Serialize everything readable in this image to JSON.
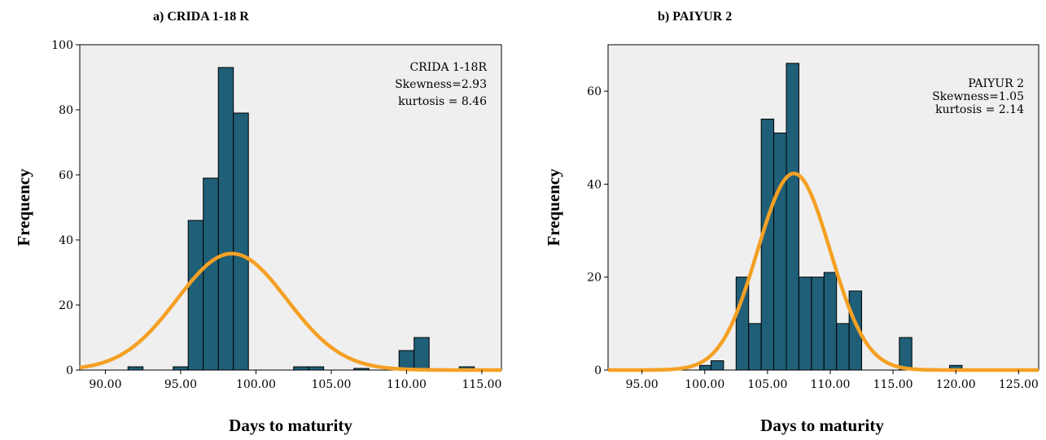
{
  "chart_data": [
    {
      "type": "bar",
      "panel_title": "a) CRIDA 1-18 R",
      "xlabel": "Days to maturity",
      "ylabel": "Frequency",
      "xlim": [
        88.3,
        116.3
      ],
      "ylim": [
        0,
        100
      ],
      "xticks": [
        "90.00",
        "95.00",
        "100.00",
        "105.00",
        "110.00",
        "115.00"
      ],
      "xtick_values": [
        90,
        95,
        100,
        105,
        110,
        115
      ],
      "yticks": [
        "0",
        "20",
        "40",
        "60",
        "80",
        "100"
      ],
      "ytick_values": [
        0,
        20,
        40,
        60,
        80,
        100
      ],
      "annotation": [
        "CRIDA 1-18R",
        "Skewness=2.93",
        "kurtosis = 8.46"
      ],
      "bins": [
        {
          "x0": 91.5,
          "x1": 92.5,
          "count": 1
        },
        {
          "x0": 94.5,
          "x1": 95.5,
          "count": 1
        },
        {
          "x0": 95.5,
          "x1": 96.5,
          "count": 46
        },
        {
          "x0": 96.5,
          "x1": 97.5,
          "count": 59
        },
        {
          "x0": 97.5,
          "x1": 98.5,
          "count": 93
        },
        {
          "x0": 98.5,
          "x1": 99.5,
          "count": 79
        },
        {
          "x0": 102.5,
          "x1": 103.5,
          "count": 1
        },
        {
          "x0": 103.5,
          "x1": 104.5,
          "count": 1
        },
        {
          "x0": 106.5,
          "x1": 107.5,
          "count": 0.5
        },
        {
          "x0": 109.5,
          "x1": 110.5,
          "count": 6
        },
        {
          "x0": 110.5,
          "x1": 111.5,
          "count": 10
        },
        {
          "x0": 113.5,
          "x1": 114.5,
          "count": 1
        }
      ],
      "normal_curve": {
        "mean": 98.4,
        "sd": 3.65,
        "peak": 35.8
      },
      "bar_color": "#1f5f78",
      "curve_color": "#f5a023",
      "grid": false
    },
    {
      "type": "bar",
      "panel_title": "b) PAIYUR 2",
      "xlabel": "Days to maturity",
      "ylabel": "Frequency",
      "xlim": [
        92.3,
        126.6
      ],
      "ylim": [
        0,
        70
      ],
      "xticks": [
        "95.00",
        "100.00",
        "105.00",
        "110.00",
        "115.00",
        "120.00",
        "125.00"
      ],
      "xtick_values": [
        95,
        100,
        105,
        110,
        115,
        120,
        125
      ],
      "yticks": [
        "0",
        "20",
        "40",
        "60"
      ],
      "ytick_values": [
        0,
        20,
        40,
        60
      ],
      "annotation": [
        "PAIYUR 2",
        "Skewness=1.05",
        "kurtosis = 2.14"
      ],
      "bins": [
        {
          "x0": 99.6,
          "x1": 100.5,
          "count": 1
        },
        {
          "x0": 100.5,
          "x1": 101.5,
          "count": 2
        },
        {
          "x0": 102.5,
          "x1": 103.5,
          "count": 20
        },
        {
          "x0": 103.5,
          "x1": 104.5,
          "count": 10
        },
        {
          "x0": 104.5,
          "x1": 105.5,
          "count": 54
        },
        {
          "x0": 105.5,
          "x1": 106.5,
          "count": 51
        },
        {
          "x0": 106.5,
          "x1": 107.5,
          "count": 66
        },
        {
          "x0": 107.5,
          "x1": 108.5,
          "count": 20
        },
        {
          "x0": 108.5,
          "x1": 109.5,
          "count": 20
        },
        {
          "x0": 109.5,
          "x1": 110.5,
          "count": 21
        },
        {
          "x0": 110.5,
          "x1": 111.5,
          "count": 10
        },
        {
          "x0": 111.5,
          "x1": 112.5,
          "count": 17
        },
        {
          "x0": 115.5,
          "x1": 116.5,
          "count": 7
        },
        {
          "x0": 119.5,
          "x1": 120.5,
          "count": 1
        }
      ],
      "normal_curve": {
        "mean": 107.1,
        "sd": 2.9,
        "peak": 42.3
      },
      "bar_color": "#1f5f78",
      "curve_color": "#f5a023",
      "grid": false
    }
  ]
}
